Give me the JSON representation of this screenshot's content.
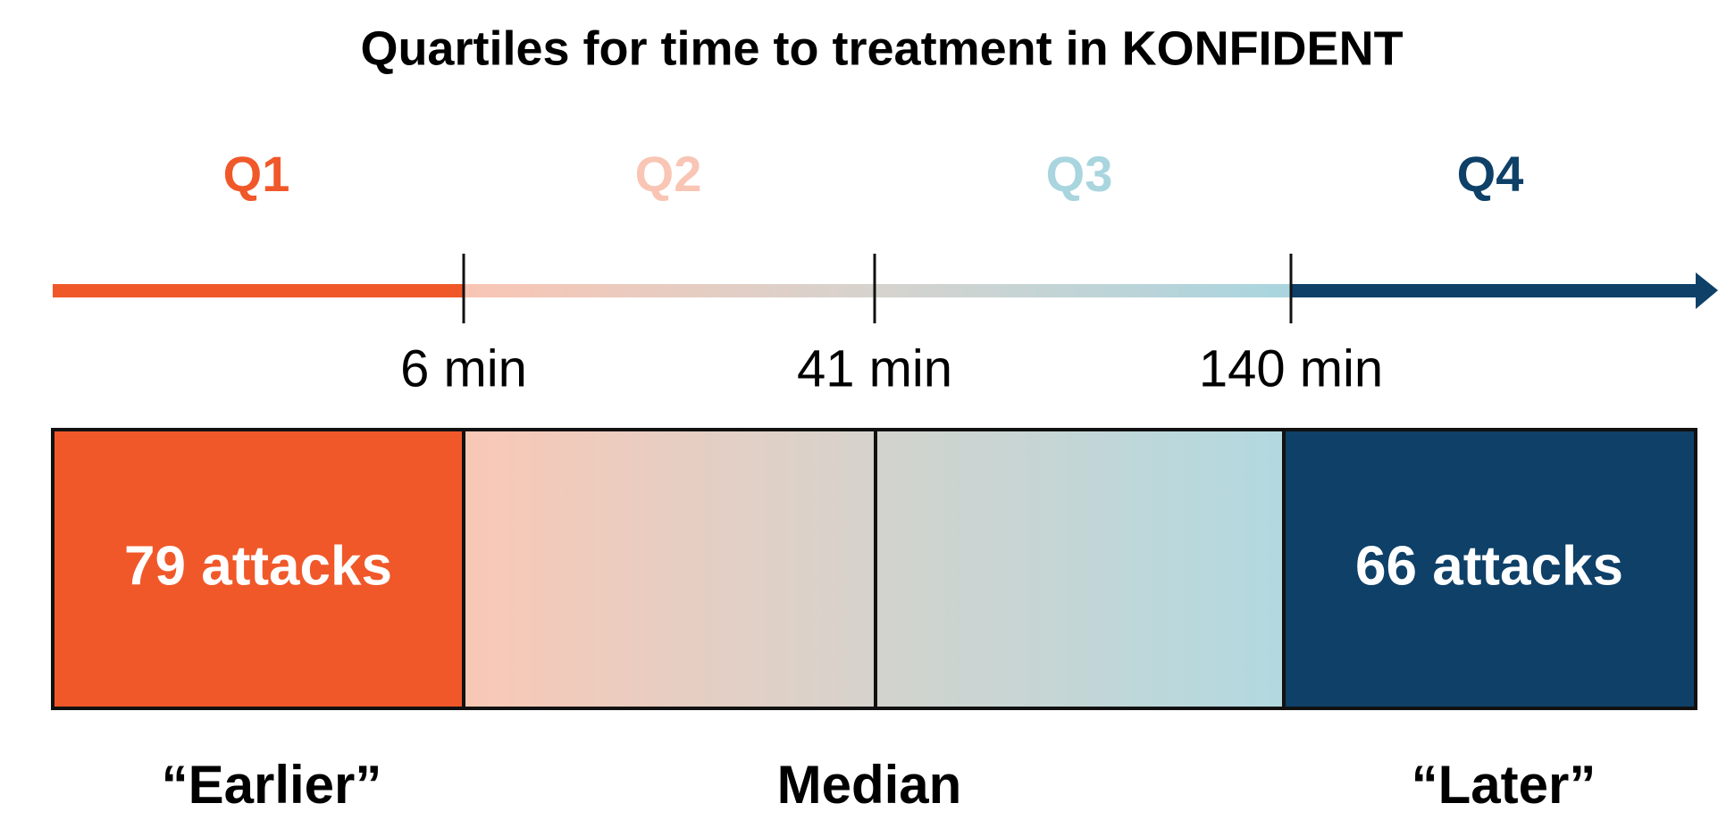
{
  "title": "Quartiles for time to treatment in KONFIDENT",
  "quartiles": [
    "Q1",
    "Q2",
    "Q3",
    "Q4"
  ],
  "thresholds": [
    "6 min",
    "41 min",
    "140 min"
  ],
  "boxes": {
    "q1": "79 attacks",
    "q4": "66 attacks"
  },
  "bottom_labels": [
    "“Earlier”",
    "Median",
    "“Later”"
  ]
}
